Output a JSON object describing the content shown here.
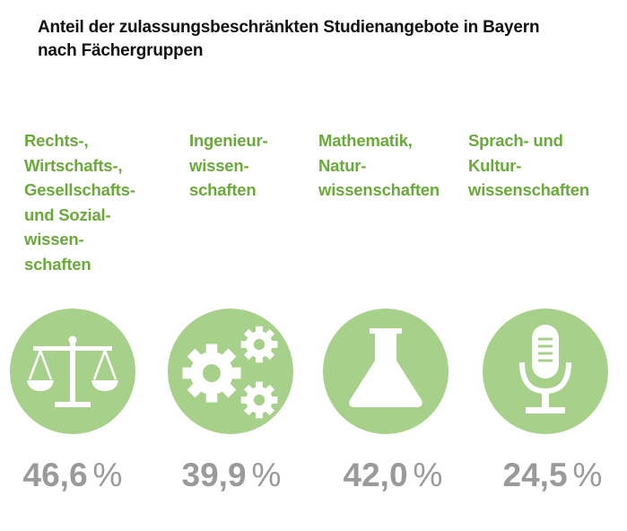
{
  "title": {
    "line1": "Anteil der zulassungsbeschränkten Studienangebote in Bayern",
    "line2": "nach Fächergruppen"
  },
  "unit": "%",
  "colors": {
    "accent": "#6aaa3a",
    "circle": "#a7d18b",
    "value": "#9a9a9a"
  },
  "groups": [
    {
      "label_lines": [
        "Rechts-,",
        "Wirtschafts-,",
        "Gesellschafts-",
        "und Sozial-",
        "wissen-",
        "schaften"
      ],
      "icon": "scales-icon",
      "value": "46,6"
    },
    {
      "label_lines": [
        "Ingenieur-",
        "wissen-",
        "schaften"
      ],
      "icon": "gears-icon",
      "value": "39,9"
    },
    {
      "label_lines": [
        "Mathematik,",
        "Natur-",
        "wissenschaften"
      ],
      "icon": "flask-icon",
      "value": "42,0"
    },
    {
      "label_lines": [
        "Sprach- und",
        "Kultur-",
        "wissenschaften"
      ],
      "icon": "microphone-icon",
      "value": "24,5"
    }
  ]
}
